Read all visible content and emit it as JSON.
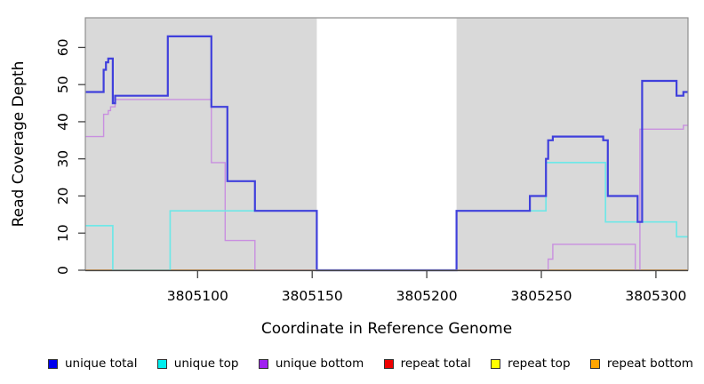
{
  "chart_data": {
    "type": "line",
    "step": "after",
    "title": "",
    "xlabel": "Coordinate in Reference Genome",
    "ylabel": "Read Coverage Depth",
    "xlim": [
      3805051,
      3805314
    ],
    "ylim": [
      0,
      68
    ],
    "x_ticks": [
      3805100,
      3805150,
      3805200,
      3805250,
      3805300
    ],
    "y_ticks": [
      0,
      10,
      20,
      30,
      40,
      50,
      60
    ],
    "plot_background": "#d9d9d9",
    "masked_region": {
      "x_start": 3805152,
      "x_end": 3805213
    },
    "grid": false,
    "legend_position": "bottom",
    "series": [
      {
        "name": "unique total",
        "legend_color": "#0000EE",
        "line_color": "#4040DC",
        "line_width": 2.2,
        "points": [
          [
            3805051,
            48
          ],
          [
            3805059,
            54
          ],
          [
            3805060,
            56
          ],
          [
            3805061,
            57
          ],
          [
            3805063,
            45
          ],
          [
            3805064,
            47
          ],
          [
            3805087,
            63
          ],
          [
            3805106,
            44
          ],
          [
            3805113,
            24
          ],
          [
            3805125,
            16
          ],
          [
            3805152,
            0
          ],
          [
            3805213,
            16
          ],
          [
            3805245,
            20
          ],
          [
            3805252,
            30
          ],
          [
            3805253,
            35
          ],
          [
            3805255,
            36
          ],
          [
            3805277,
            35
          ],
          [
            3805279,
            20
          ],
          [
            3805292,
            13
          ],
          [
            3805294,
            51
          ],
          [
            3805309,
            47
          ],
          [
            3805312,
            48
          ]
        ]
      },
      {
        "name": "unique top",
        "legend_color": "#00EEEE",
        "line_color": "#6FE7E7",
        "line_width": 1.7,
        "points": [
          [
            3805051,
            12
          ],
          [
            3805063,
            0
          ],
          [
            3805088,
            16
          ],
          [
            3805152,
            0
          ],
          [
            3805213,
            16
          ],
          [
            3805252,
            29
          ],
          [
            3805278,
            13
          ],
          [
            3805309,
            9
          ]
        ]
      },
      {
        "name": "unique bottom",
        "legend_color": "#A020F0",
        "line_color": "#C98FE0",
        "line_width": 1.4,
        "points": [
          [
            3805051,
            36
          ],
          [
            3805059,
            42
          ],
          [
            3805061,
            43
          ],
          [
            3805062,
            44
          ],
          [
            3805064,
            46
          ],
          [
            3805106,
            29
          ],
          [
            3805112,
            8
          ],
          [
            3805125,
            0
          ],
          [
            3805253,
            3
          ],
          [
            3805255,
            7
          ],
          [
            3805291,
            0
          ],
          [
            3805293,
            38
          ],
          [
            3805312,
            39
          ]
        ]
      },
      {
        "name": "repeat total",
        "legend_color": "#EE0000",
        "line_color": "#E05555",
        "line_width": 1.2,
        "points": [
          [
            3805051,
            0
          ]
        ]
      },
      {
        "name": "repeat top",
        "legend_color": "#FFFF00",
        "line_color": "#F2F266",
        "line_width": 1.2,
        "points": [
          [
            3805051,
            0
          ]
        ]
      },
      {
        "name": "repeat bottom",
        "legend_color": "#FFA500",
        "line_color": "#FF9E26",
        "line_width": 2,
        "points": [
          [
            3805051,
            0
          ]
        ]
      }
    ],
    "draw_order": [
      3,
      4,
      5,
      2,
      1,
      0
    ]
  },
  "legend": {
    "items": [
      {
        "label": "unique total",
        "color": "#0000EE"
      },
      {
        "label": "unique top",
        "color": "#00EEEE"
      },
      {
        "label": "unique bottom",
        "color": "#A020F0"
      },
      {
        "label": "repeat total",
        "color": "#EE0000"
      },
      {
        "label": "repeat top",
        "color": "#FFFF00"
      },
      {
        "label": "repeat bottom",
        "color": "#FFA500"
      }
    ]
  },
  "style": {
    "box_border_color": "#8F8F8F",
    "axis_color": "#444444",
    "tick_color": "#444444"
  }
}
